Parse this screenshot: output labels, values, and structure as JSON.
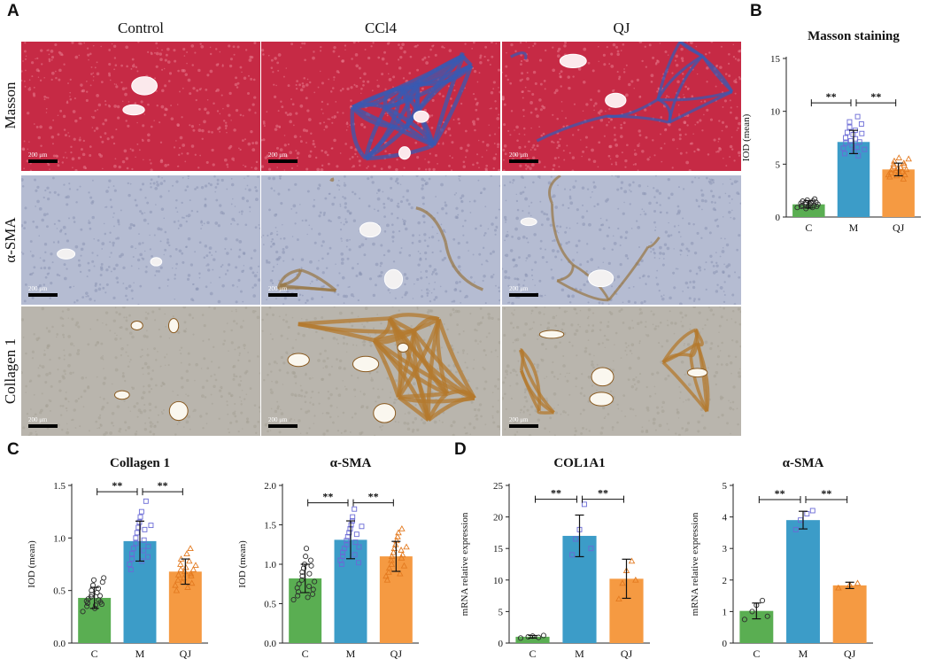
{
  "panel_letters": [
    "A",
    "B",
    "C",
    "D"
  ],
  "columns": [
    "Control",
    "CCl4",
    "QJ"
  ],
  "rows": [
    "Masson",
    "α-SMA",
    "Collagen 1"
  ],
  "scale_bar_label": "200 μm",
  "chart_data": [
    {
      "type": "bar",
      "title": "Masson staining",
      "xlabel": "",
      "ylabel": "IOD (mean)",
      "categories": [
        "C",
        "M",
        "QJ"
      ],
      "values": [
        1.2,
        7.1,
        4.5
      ],
      "errors": [
        0.35,
        1.1,
        0.6
      ],
      "ylim": [
        0,
        15
      ],
      "yticks": [
        0,
        5,
        10,
        15
      ],
      "ytick_labels": [
        "0",
        "5",
        "10",
        "15"
      ],
      "significance": [
        {
          "from": 0,
          "to": 1,
          "label": "**"
        },
        {
          "from": 1,
          "to": 2,
          "label": "**"
        }
      ],
      "sig_y": 10.8,
      "colors": [
        "#5aae52",
        "#3c9cc8",
        "#f59a42"
      ],
      "point_markers": [
        "circle",
        "square",
        "triangle"
      ],
      "points": [
        [
          0.9,
          1.0,
          1.1,
          1.3,
          1.5,
          1.2,
          0.8,
          1.4,
          1.6,
          1.0,
          1.1,
          1.2,
          1.3,
          0.9,
          1.5,
          1.7,
          1.1,
          1.0,
          1.2,
          1.4
        ],
        [
          6.0,
          6.5,
          7.0,
          7.5,
          8.0,
          8.5,
          9.0,
          7.2,
          6.8,
          7.8,
          6.2,
          8.2,
          7.4,
          6.6,
          9.5,
          5.8,
          7.1,
          7.9,
          8.8,
          6.4
        ],
        [
          3.8,
          4.0,
          4.2,
          4.5,
          4.8,
          5.0,
          5.3,
          4.4,
          3.9,
          4.6,
          5.6,
          4.1,
          4.7,
          4.3,
          5.1,
          3.6,
          4.9,
          4.5,
          4.0,
          5.5
        ]
      ]
    },
    {
      "type": "bar",
      "title": "Collagen 1",
      "xlabel": "",
      "ylabel": "IOD (mean)",
      "categories": [
        "C",
        "M",
        "QJ"
      ],
      "values": [
        0.43,
        0.97,
        0.68
      ],
      "errors": [
        0.1,
        0.19,
        0.12
      ],
      "ylim": [
        0,
        1.5
      ],
      "yticks": [
        0,
        0.5,
        1.0,
        1.5
      ],
      "ytick_labels": [
        "0.0",
        "0.5",
        "1.0",
        "1.5"
      ],
      "significance": [
        {
          "from": 0,
          "to": 1,
          "label": "**"
        },
        {
          "from": 1,
          "to": 2,
          "label": "**"
        }
      ],
      "sig_y": 1.44,
      "colors": [
        "#5aae52",
        "#3c9cc8",
        "#f59a42"
      ],
      "point_markers": [
        "circle",
        "square",
        "triangle"
      ],
      "points": [
        [
          0.3,
          0.35,
          0.38,
          0.4,
          0.42,
          0.44,
          0.46,
          0.5,
          0.55,
          0.6,
          0.33,
          0.36,
          0.48,
          0.52,
          0.41,
          0.39,
          0.45,
          0.58,
          0.62,
          0.37
        ],
        [
          0.7,
          0.75,
          0.8,
          0.85,
          0.9,
          0.95,
          1.0,
          1.05,
          1.1,
          1.15,
          1.2,
          1.25,
          0.78,
          0.88,
          0.98,
          1.08,
          1.35,
          0.92,
          0.82,
          1.12
        ],
        [
          0.5,
          0.55,
          0.6,
          0.65,
          0.7,
          0.75,
          0.8,
          0.58,
          0.62,
          0.68,
          0.72,
          0.85,
          0.53,
          0.78,
          0.66,
          0.9,
          0.64,
          0.7,
          0.57,
          0.74
        ]
      ]
    },
    {
      "type": "bar",
      "title": "α-SMA",
      "xlabel": "",
      "ylabel": "IOD (mean)",
      "categories": [
        "C",
        "M",
        "QJ"
      ],
      "values": [
        0.82,
        1.31,
        1.1
      ],
      "errors": [
        0.18,
        0.24,
        0.19
      ],
      "ylim": [
        0,
        2.0
      ],
      "yticks": [
        0,
        0.5,
        1.0,
        1.5,
        2.0
      ],
      "ytick_labels": [
        "0.0",
        "0.5",
        "1.0",
        "1.5",
        "2.0"
      ],
      "significance": [
        {
          "from": 0,
          "to": 1,
          "label": "**"
        },
        {
          "from": 1,
          "to": 2,
          "label": "**"
        }
      ],
      "sig_y": 1.78,
      "colors": [
        "#5aae52",
        "#3c9cc8",
        "#f59a42"
      ],
      "point_markers": [
        "circle",
        "square",
        "triangle"
      ],
      "points": [
        [
          0.55,
          0.6,
          0.65,
          0.7,
          0.75,
          0.8,
          0.85,
          0.9,
          0.95,
          1.0,
          1.1,
          1.2,
          0.58,
          0.72,
          0.88,
          0.98,
          1.05,
          0.68,
          0.78,
          0.62
        ],
        [
          1.0,
          1.05,
          1.1,
          1.15,
          1.2,
          1.25,
          1.3,
          1.35,
          1.4,
          1.45,
          1.5,
          1.55,
          1.6,
          1.7,
          1.12,
          1.28,
          1.38,
          1.22,
          1.02,
          1.48
        ],
        [
          0.8,
          0.85,
          0.9,
          0.95,
          1.0,
          1.05,
          1.1,
          1.15,
          1.2,
          1.25,
          1.3,
          1.35,
          1.4,
          0.88,
          1.08,
          1.18,
          1.45,
          0.98,
          1.12,
          1.22
        ]
      ]
    },
    {
      "type": "bar",
      "title": "COL1A1",
      "xlabel": "",
      "ylabel": "mRNA relative expression",
      "categories": [
        "C",
        "M",
        "QJ"
      ],
      "values": [
        1.0,
        17.0,
        10.2
      ],
      "errors": [
        0.2,
        3.3,
        3.1
      ],
      "ylim": [
        0,
        25
      ],
      "yticks": [
        0,
        5,
        10,
        15,
        20,
        25
      ],
      "ytick_labels": [
        "0",
        "5",
        "10",
        "15",
        "20",
        "25"
      ],
      "significance": [
        {
          "from": 0,
          "to": 1,
          "label": "**"
        },
        {
          "from": 1,
          "to": 2,
          "label": "**"
        }
      ],
      "sig_y": 22.8,
      "colors": [
        "#5aae52",
        "#3c9cc8",
        "#f59a42"
      ],
      "point_markers": [
        "circle",
        "square",
        "triangle"
      ],
      "points": [
        [
          0.8,
          1.0,
          1.1,
          0.9,
          1.2
        ],
        [
          14.0,
          16.5,
          18.0,
          22.0,
          15.0
        ],
        [
          7.0,
          9.5,
          11.5,
          13.0,
          10.0
        ]
      ]
    },
    {
      "type": "bar",
      "title": "α-SMA",
      "xlabel": "",
      "ylabel": "mRNA relative expression",
      "categories": [
        "C",
        "M",
        "QJ"
      ],
      "values": [
        1.02,
        3.9,
        1.83
      ],
      "errors": [
        0.25,
        0.28,
        0.1
      ],
      "ylim": [
        0,
        5
      ],
      "yticks": [
        0,
        1,
        2,
        3,
        4,
        5
      ],
      "ytick_labels": [
        "0",
        "1",
        "2",
        "3",
        "4",
        "5"
      ],
      "significance": [
        {
          "from": 0,
          "to": 1,
          "label": "**"
        },
        {
          "from": 1,
          "to": 2,
          "label": "**"
        }
      ],
      "sig_y": 4.55,
      "colors": [
        "#5aae52",
        "#3c9cc8",
        "#f59a42"
      ],
      "point_markers": [
        "circle",
        "square",
        "triangle"
      ],
      "points": [
        [
          0.75,
          1.0,
          1.2,
          1.35,
          0.85
        ],
        [
          3.6,
          3.9,
          4.1,
          4.2
        ],
        [
          1.75,
          1.85,
          1.9
        ]
      ]
    }
  ]
}
